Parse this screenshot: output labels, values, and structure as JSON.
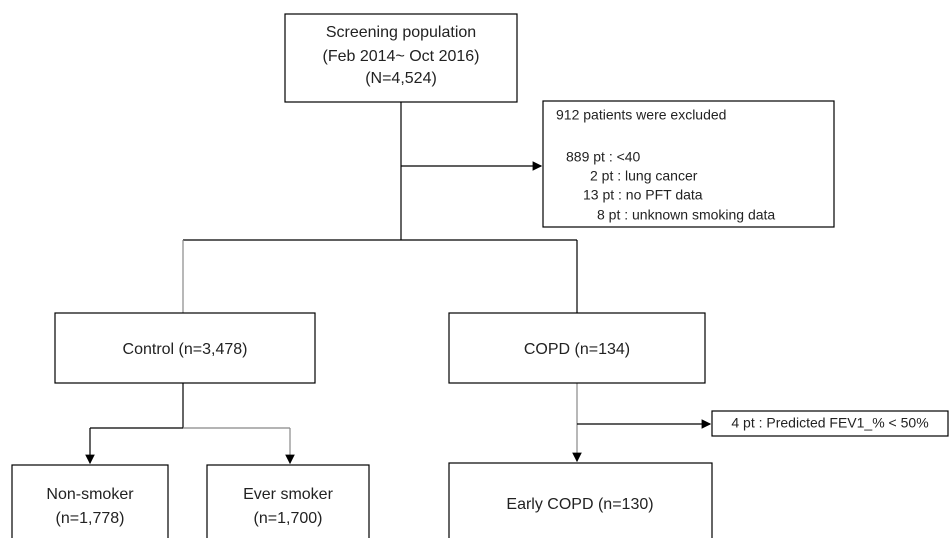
{
  "nodes": [
    {
      "lines": [
        "Screening population",
        "(Feb 2014~ Oct 2016)",
        "(N=4,524)"
      ]
    },
    {
      "lines": [
        "912 patients were excluded",
        "889 pt : <40",
        "2 pt : lung cancer",
        "13 pt : no PFT data",
        "8 pt : unknown smoking data"
      ]
    },
    {
      "lines": [
        "Control (n=3,478)"
      ]
    },
    {
      "lines": [
        "COPD (n=134)"
      ]
    },
    {
      "lines": [
        "Non-smoker",
        "(n=1,778)"
      ]
    },
    {
      "lines": [
        "Ever smoker",
        "(n=1,700)"
      ]
    },
    {
      "lines": [
        "4 pt : Predicted FEV1_% < 50%"
      ]
    },
    {
      "lines": [
        "Early COPD (n=130)"
      ]
    }
  ]
}
